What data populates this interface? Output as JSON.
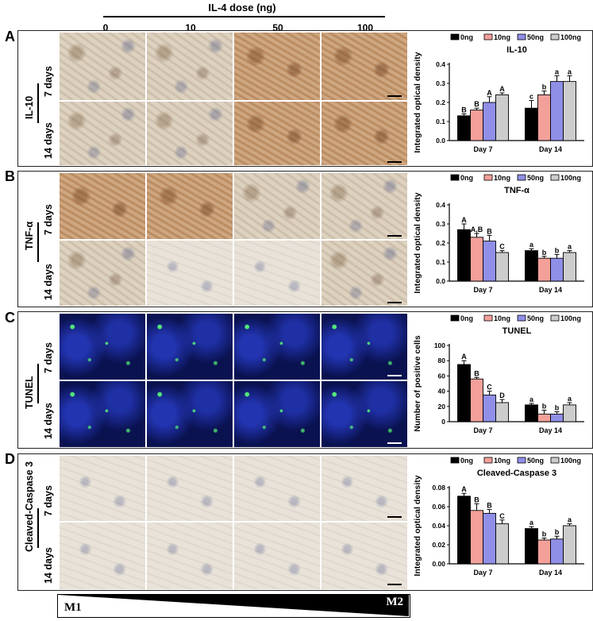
{
  "header": {
    "title": "IL-4 dose (ng)",
    "doses": [
      "0",
      "10",
      "50",
      "100"
    ]
  },
  "panels": [
    {
      "letter": "A",
      "marker": "IL-10",
      "rows": [
        "7 days",
        "14 days"
      ]
    },
    {
      "letter": "B",
      "marker": "TNF-α",
      "rows": [
        "7 days",
        "14 days"
      ]
    },
    {
      "letter": "C",
      "marker": "TUNEL",
      "rows": [
        "7 days",
        "14 days"
      ]
    },
    {
      "letter": "D",
      "marker": "Cleaved-Caspase 3",
      "rows": [
        "7 days",
        "14 days"
      ]
    }
  ],
  "gradient": {
    "left": "M1",
    "right": "M2"
  },
  "colors": {
    "0ng": "#000000",
    "10ng": "#f4a09a",
    "50ng": "#8f8fe8",
    "100ng": "#cccccc"
  },
  "chart_data": [
    {
      "type": "bar",
      "title": "IL-10",
      "ylabel": "Integrated optical density",
      "categories": [
        "Day 7",
        "Day 14"
      ],
      "ylim": [
        0,
        0.4
      ],
      "yticks": [
        "0.0",
        "0.1",
        "0.2",
        "0.3",
        "0.4"
      ],
      "ytick_values": [
        0,
        0.1,
        0.2,
        0.3,
        0.4
      ],
      "legend": [
        "0ng",
        "10ng",
        "50ng",
        "100ng"
      ],
      "series": [
        {
          "name": "0ng",
          "values": [
            0.13,
            0.17
          ],
          "errors": [
            0.01,
            0.04
          ],
          "letters": [
            "B",
            "c"
          ]
        },
        {
          "name": "10ng",
          "values": [
            0.16,
            0.24
          ],
          "errors": [
            0.01,
            0.02
          ],
          "letters": [
            "B",
            "b"
          ]
        },
        {
          "name": "50ng",
          "values": [
            0.2,
            0.31
          ],
          "errors": [
            0.03,
            0.03
          ],
          "letters": [
            "A",
            "a"
          ]
        },
        {
          "name": "100ng",
          "values": [
            0.24,
            0.31
          ],
          "errors": [
            0.01,
            0.03
          ],
          "letters": [
            "A",
            "a"
          ]
        }
      ]
    },
    {
      "type": "bar",
      "title": "TNF-α",
      "ylabel": "Integrated optical density",
      "categories": [
        "Day 7",
        "Day 14"
      ],
      "ylim": [
        0,
        0.4
      ],
      "yticks": [
        "0.0",
        "0.1",
        "0.2",
        "0.3",
        "0.4"
      ],
      "ytick_values": [
        0,
        0.1,
        0.2,
        0.3,
        0.4
      ],
      "legend": [
        "0ng",
        "10ng",
        "50ng",
        "100ng"
      ],
      "series": [
        {
          "name": "0ng",
          "values": [
            0.27,
            0.16
          ],
          "errors": [
            0.03,
            0.01
          ],
          "letters": [
            "A",
            "a"
          ]
        },
        {
          "name": "10ng",
          "values": [
            0.23,
            0.12
          ],
          "errors": [
            0.02,
            0.01
          ],
          "letters": [
            "A,B",
            "b"
          ]
        },
        {
          "name": "50ng",
          "values": [
            0.21,
            0.12
          ],
          "errors": [
            0.03,
            0.02
          ],
          "letters": [
            "B",
            "b"
          ]
        },
        {
          "name": "100ng",
          "values": [
            0.15,
            0.15
          ],
          "errors": [
            0.01,
            0.01
          ],
          "letters": [
            "C",
            "a"
          ]
        }
      ]
    },
    {
      "type": "bar",
      "title": "TUNEL",
      "ylabel": "Number of positive cells",
      "categories": [
        "Day 7",
        "Day 14"
      ],
      "ylim": [
        0,
        100
      ],
      "yticks": [
        "0",
        "20",
        "40",
        "60",
        "80",
        "100"
      ],
      "ytick_values": [
        0,
        20,
        40,
        60,
        80,
        100
      ],
      "legend": [
        "0ng",
        "10ng",
        "50ng",
        "100ng"
      ],
      "series": [
        {
          "name": "0ng",
          "values": [
            75,
            22
          ],
          "errors": [
            5,
            2
          ],
          "letters": [
            "A",
            "a"
          ]
        },
        {
          "name": "10ng",
          "values": [
            56,
            10
          ],
          "errors": [
            2,
            5
          ],
          "letters": [
            "B",
            "b"
          ]
        },
        {
          "name": "50ng",
          "values": [
            35,
            10
          ],
          "errors": [
            5,
            3
          ],
          "letters": [
            "C",
            "b"
          ]
        },
        {
          "name": "100ng",
          "values": [
            25,
            22
          ],
          "errors": [
            4,
            3
          ],
          "letters": [
            "D",
            "a"
          ]
        }
      ]
    },
    {
      "type": "bar",
      "title": "Cleaved-Caspase 3",
      "ylabel": "Integrated optical density",
      "categories": [
        "Day 7",
        "Day 14"
      ],
      "ylim": [
        0,
        0.08
      ],
      "yticks": [
        "0.00",
        "0.02",
        "0.04",
        "0.06",
        "0.08"
      ],
      "ytick_values": [
        0,
        0.02,
        0.04,
        0.06,
        0.08
      ],
      "legend": [
        "0ng",
        "10ng",
        "50ng",
        "100ng"
      ],
      "series": [
        {
          "name": "0ng",
          "values": [
            0.071,
            0.037
          ],
          "errors": [
            0.003,
            0.002
          ],
          "letters": [
            "A",
            "a"
          ]
        },
        {
          "name": "10ng",
          "values": [
            0.056,
            0.025
          ],
          "errors": [
            0.007,
            0.002
          ],
          "letters": [
            "B",
            "b"
          ]
        },
        {
          "name": "50ng",
          "values": [
            0.053,
            0.026
          ],
          "errors": [
            0.004,
            0.003
          ],
          "letters": [
            "B",
            "b"
          ]
        },
        {
          "name": "100ng",
          "values": [
            0.042,
            0.04
          ],
          "errors": [
            0.004,
            0.002
          ],
          "letters": [
            "C",
            "a"
          ]
        }
      ]
    }
  ]
}
